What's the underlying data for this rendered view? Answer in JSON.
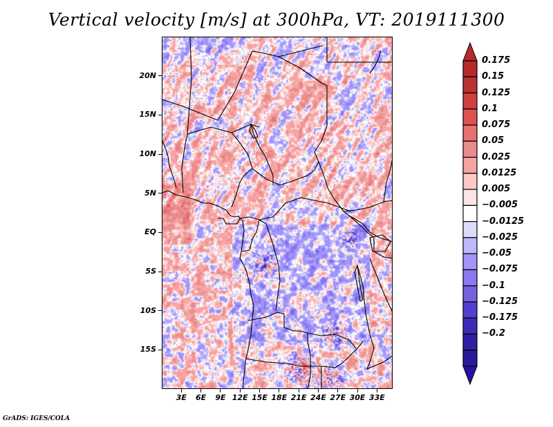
{
  "title": "Vertical velocity [m/s] at 300hPa, VT: 2019111300",
  "footer": "GrADS: IGES/COLA",
  "map": {
    "variable": "Vertical velocity",
    "units": "m/s",
    "level": "300hPa",
    "valid_time": "2019111300",
    "lon_range": [
      0.0,
      35.4
    ],
    "lat_range": [
      -20.0,
      25.0
    ],
    "y_axis": {
      "ticks": [
        {
          "lat": 20,
          "label": "20N"
        },
        {
          "lat": 15,
          "label": "15N"
        },
        {
          "lat": 10,
          "label": "10N"
        },
        {
          "lat": 5,
          "label": "5N"
        },
        {
          "lat": 0,
          "label": "EQ"
        },
        {
          "lat": -5,
          "label": "5S"
        },
        {
          "lat": -10,
          "label": "10S"
        },
        {
          "lat": -15,
          "label": "15S"
        }
      ]
    },
    "x_axis": {
      "ticks": [
        {
          "lon": 3,
          "label": "3E"
        },
        {
          "lon": 6,
          "label": "6E"
        },
        {
          "lon": 9,
          "label": "9E"
        },
        {
          "lon": 12,
          "label": "12E"
        },
        {
          "lon": 15,
          "label": "15E"
        },
        {
          "lon": 18,
          "label": "18E"
        },
        {
          "lon": 21,
          "label": "21E"
        },
        {
          "lon": 24,
          "label": "24E"
        },
        {
          "lon": 27,
          "label": "27E"
        },
        {
          "lon": 30,
          "label": "30E"
        },
        {
          "lon": 33,
          "label": "33E"
        }
      ]
    }
  },
  "colorbar": {
    "labels": [
      "0.175",
      "0.15",
      "0.125",
      "0.1",
      "0.075",
      "0.05",
      "0.025",
      "0.0125",
      "0.005",
      "−0.005",
      "−0.0125",
      "−0.025",
      "−0.05",
      "−0.075",
      "−0.1",
      "−0.125",
      "−0.175",
      "−0.2"
    ],
    "colors_top_to_bottom": [
      "#b52a2a",
      "#b83232",
      "#cd4040",
      "#e05050",
      "#e87070",
      "#e88c8c",
      "#f5a3a3",
      "#fcc8c8",
      "#fde4e4",
      "#ffffff",
      "#dcdcfa",
      "#bfb8fb",
      "#a294fa",
      "#8a78f0",
      "#7461e0",
      "#5040cf",
      "#3c2cb8",
      "#2e20a6",
      "#2a1a9a"
    ],
    "overflow_high": "#b52a2a",
    "overflow_low": "#2a10a0"
  }
}
